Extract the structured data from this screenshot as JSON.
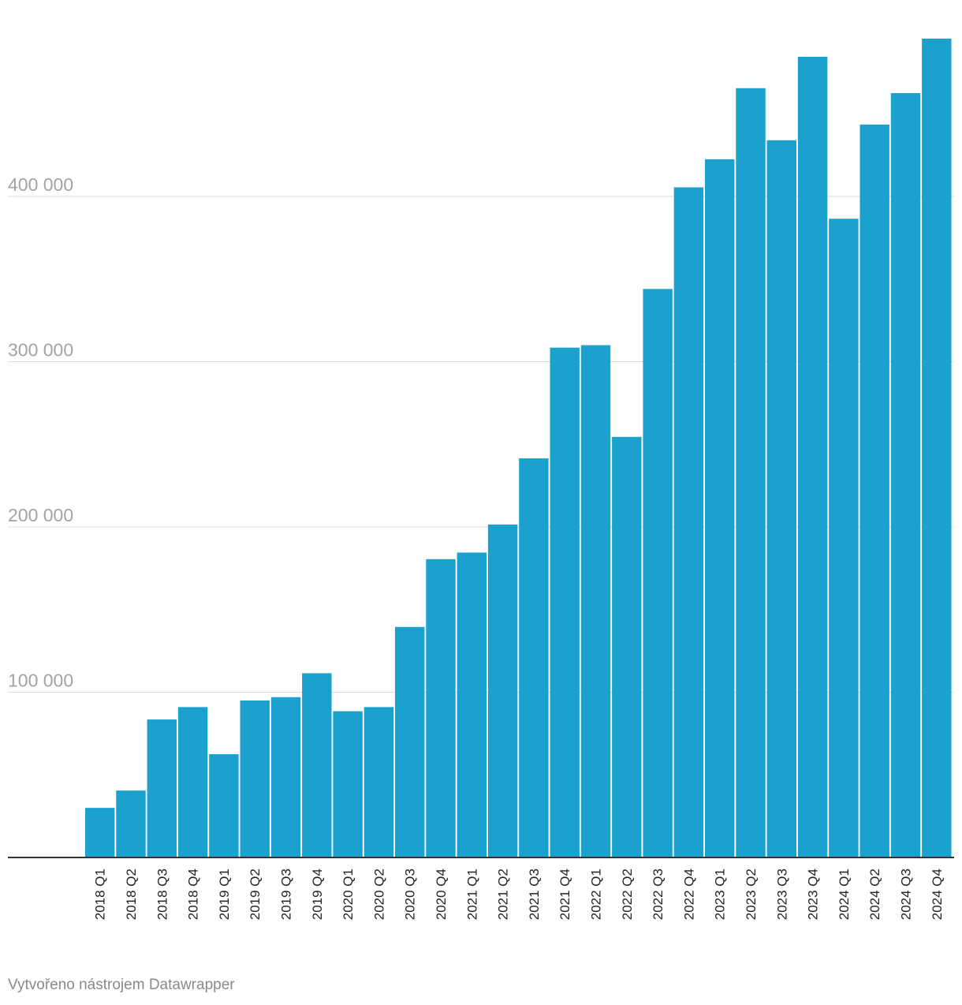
{
  "chart_data": {
    "type": "bar",
    "title": "",
    "xlabel": "",
    "ylabel": "",
    "ylim": [
      0,
      497000
    ],
    "yticks": [
      100000,
      200000,
      300000,
      400000
    ],
    "ytick_labels": [
      "100 000",
      "200 000",
      "300 000",
      "400 000"
    ],
    "grid": true,
    "bar_color": "#1aa1cd",
    "categories": [
      "2018 Q1",
      "2018 Q2",
      "2018 Q3",
      "2018 Q4",
      "2019 Q1",
      "2019 Q2",
      "2019 Q3",
      "2019 Q4",
      "2020 Q1",
      "2020 Q2",
      "2020 Q3",
      "2020 Q4",
      "2021 Q1",
      "2021 Q2",
      "2021 Q3",
      "2021 Q4",
      "2022 Q1",
      "2022 Q2",
      "2022 Q3",
      "2022 Q4",
      "2023 Q1",
      "2023 Q2",
      "2023 Q3",
      "2023 Q4",
      "2024 Q1",
      "2024 Q2",
      "2024 Q3",
      "2024 Q4"
    ],
    "values": [
      30000,
      40500,
      83500,
      91000,
      62500,
      95000,
      97000,
      111500,
      88500,
      91000,
      139500,
      180500,
      184500,
      201500,
      241500,
      308500,
      310000,
      254500,
      344000,
      405500,
      422500,
      465500,
      434000,
      484500,
      386500,
      443500,
      462500,
      495500
    ]
  },
  "footer": {
    "credit": "Vytvořeno nástrojem Datawrapper"
  }
}
